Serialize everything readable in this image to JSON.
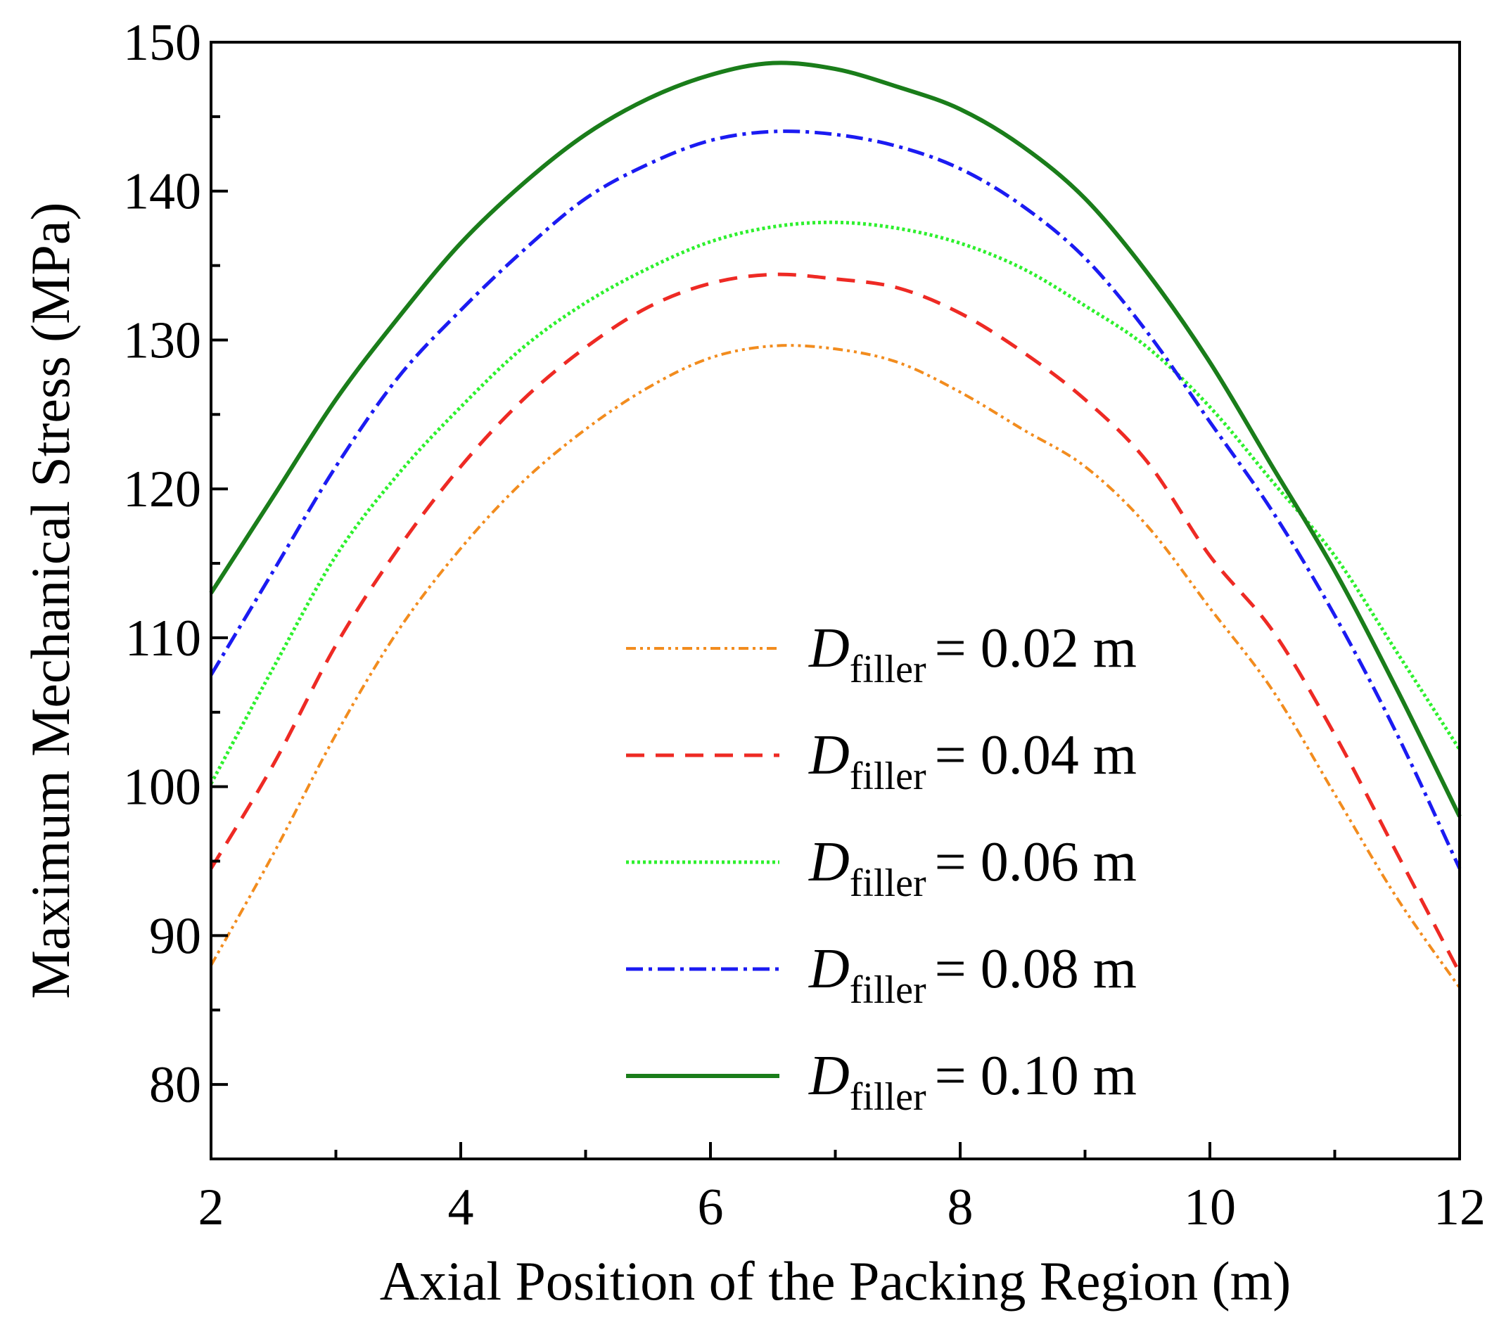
{
  "chart_data": {
    "type": "line",
    "title": "",
    "xlabel": "Axial Position of the Packing Region (m)",
    "ylabel": "Maximum Mechanical Stress (MPa)",
    "xlim": [
      2,
      12
    ],
    "ylim": [
      75,
      150
    ],
    "xticks": [
      2,
      4,
      6,
      8,
      10,
      12
    ],
    "yticks": [
      80,
      90,
      100,
      110,
      120,
      130,
      140,
      150
    ],
    "grid": false,
    "legend_position": "lower-right",
    "x": [
      2,
      2.5,
      3,
      3.5,
      4,
      4.5,
      5,
      5.5,
      6,
      6.5,
      7,
      7.5,
      8,
      8.5,
      9,
      9.5,
      10,
      10.5,
      11,
      11.5,
      12
    ],
    "series": [
      {
        "name": "0.02 m",
        "legend_main": "D",
        "legend_sub": "filler",
        "legend_value": "= 0.02 m",
        "color": "#f28c1e",
        "dash": "14 6 4 6 4 6",
        "width": 4,
        "values": [
          88,
          95.5,
          103.5,
          110.5,
          116,
          120.5,
          124,
          126.8,
          128.8,
          129.6,
          129.4,
          128.5,
          126.5,
          124,
          121.5,
          117.5,
          112,
          106.5,
          99.5,
          92.5,
          86.5
        ]
      },
      {
        "name": "0.04 m",
        "legend_main": "D",
        "legend_sub": "filler",
        "legend_value": "= 0.04 m",
        "color": "#ee2a24",
        "dash": "26 16",
        "width": 5,
        "values": [
          94.5,
          101.5,
          109.5,
          116,
          121.5,
          126,
          129.5,
          132.2,
          133.8,
          134.4,
          134.1,
          133.5,
          131.8,
          129.2,
          126,
          121.8,
          115.5,
          110.5,
          103.5,
          95.5,
          87.5
        ]
      },
      {
        "name": "0.06 m",
        "legend_main": "D",
        "legend_sub": "filler",
        "legend_value": "= 0.06 m",
        "color": "#2ef02e",
        "dash": "4 4",
        "width": 5,
        "values": [
          100.2,
          108,
          115.5,
          121,
          125.5,
          129.5,
          132.5,
          134.8,
          136.6,
          137.6,
          137.9,
          137.5,
          136.5,
          134.8,
          132.3,
          129.5,
          125.5,
          120.5,
          115.5,
          109,
          102.5
        ]
      },
      {
        "name": "0.08 m",
        "legend_main": "D",
        "legend_sub": "filler",
        "legend_value": "= 0.08 m",
        "color": "#1b1bf2",
        "dash": "24 8 5 8",
        "width": 5,
        "values": [
          107.5,
          114.5,
          121.5,
          127.5,
          132,
          136,
          139.5,
          141.8,
          143.4,
          144,
          143.8,
          143,
          141.5,
          139,
          135.5,
          130.5,
          124.5,
          118.5,
          111.5,
          103.5,
          94.5
        ]
      },
      {
        "name": "0.10 m",
        "legend_main": "D",
        "legend_sub": "filler",
        "legend_value": "= 0.10 m",
        "color": "#1a7d1a",
        "dash": "",
        "width": 6,
        "values": [
          113,
          119.5,
          126,
          131.5,
          136.5,
          140.5,
          143.8,
          146.2,
          147.8,
          148.6,
          148.2,
          147,
          145.5,
          143,
          139.5,
          134.5,
          128.5,
          121.5,
          114.5,
          106.5,
          98
        ]
      }
    ]
  }
}
